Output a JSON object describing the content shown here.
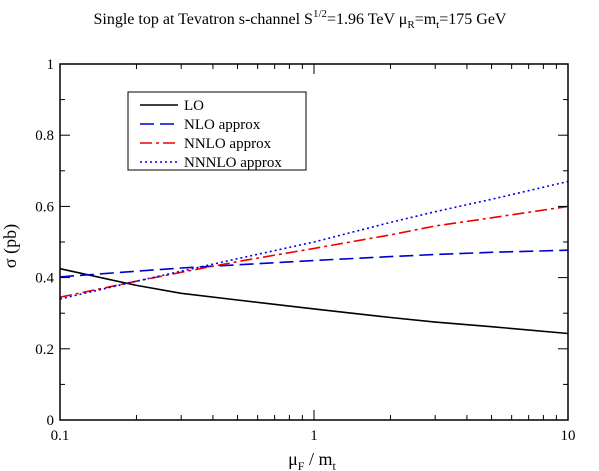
{
  "chart_data": {
    "type": "line",
    "title": "Single top at Tevatron  s-channel  S^{1/2}=1.96 TeV  μ_R=m_t=175 GeV",
    "title_parts": {
      "a": "Single top at Tevatron  s-channel  S",
      "a_sup": "1/2",
      "b": "=1.96 TeV  μ",
      "b_sub": "R",
      "c": "=m",
      "c_sub": "t",
      "d": "=175 GeV"
    },
    "xlabel_parts": {
      "main": "μ",
      "sub": "F",
      "rest": " / m",
      "sub2": "t"
    },
    "ylabel": "σ  (pb)",
    "x_scale": "log",
    "xlim": [
      0.1,
      10
    ],
    "ylim": [
      0,
      1
    ],
    "x_ticks": [
      {
        "value": 0.1,
        "label": "0.1"
      },
      {
        "value": 1,
        "label": "1"
      },
      {
        "value": 10,
        "label": "10"
      }
    ],
    "y_ticks": [
      {
        "value": 0,
        "label": "0"
      },
      {
        "value": 0.2,
        "label": "0.2"
      },
      {
        "value": 0.4,
        "label": "0.4"
      },
      {
        "value": 0.6,
        "label": "0.6"
      },
      {
        "value": 0.8,
        "label": "0.8"
      },
      {
        "value": 1,
        "label": "1"
      }
    ],
    "x": [
      0.1,
      0.2,
      0.3,
      0.5,
      1,
      2,
      3,
      5,
      10
    ],
    "series": [
      {
        "name": "LO",
        "color": "#000000",
        "dash": "solid",
        "values": [
          0.425,
          0.378,
          0.356,
          0.337,
          0.312,
          0.288,
          0.275,
          0.262,
          0.243
        ]
      },
      {
        "name": "NLO approx",
        "color": "#0000cc",
        "dash": "dashed",
        "values": [
          0.402,
          0.418,
          0.427,
          0.436,
          0.448,
          0.459,
          0.465,
          0.471,
          0.477
        ]
      },
      {
        "name": "NNLO approx",
        "color": "#ee0000",
        "dash": "dashdot",
        "values": [
          0.345,
          0.39,
          0.415,
          0.445,
          0.482,
          0.52,
          0.545,
          0.568,
          0.6
        ]
      },
      {
        "name": "NNNLO approx",
        "color": "#0000ee",
        "dash": "dotted",
        "values": [
          0.34,
          0.39,
          0.418,
          0.453,
          0.5,
          0.555,
          0.585,
          0.62,
          0.67
        ]
      }
    ],
    "legend_position": "top-left",
    "grid": false
  }
}
